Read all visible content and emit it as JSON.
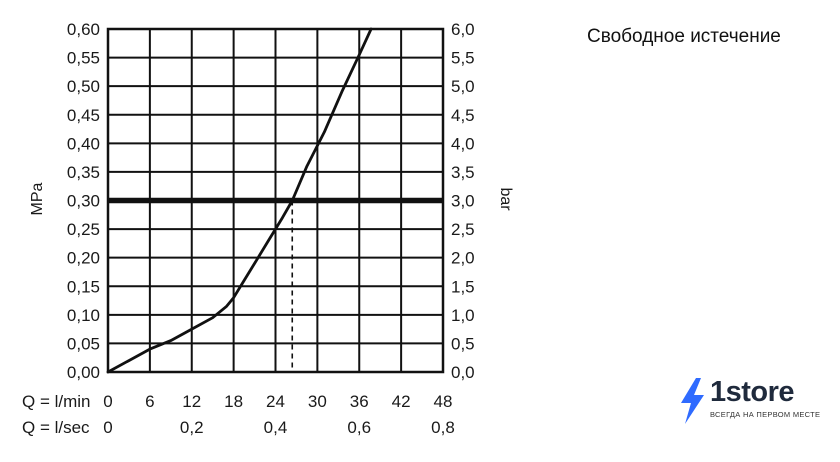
{
  "heading": "Свободное истечение",
  "brand": {
    "name": "1store",
    "tagline": "ВСЕГДА НА ПЕРВОМ МЕСТЕ",
    "accent_color": "#2f6bff"
  },
  "chart_data": {
    "type": "line",
    "ylabel_left": "MPa",
    "ylabel_right": "bar",
    "left_ticks": [
      "0,00",
      "0,05",
      "0,10",
      "0,15",
      "0,20",
      "0,25",
      "0,30",
      "0,35",
      "0,40",
      "0,45",
      "0,50",
      "0,55",
      "0,60"
    ],
    "right_ticks": [
      "0,0",
      "0,5",
      "1,0",
      "1,5",
      "2,0",
      "2,5",
      "3,0",
      "3,5",
      "4,0",
      "4,5",
      "5,0",
      "5,5",
      "6,0"
    ],
    "ylim": [
      0,
      0.6
    ],
    "xlim": [
      0,
      48
    ],
    "x_rows": [
      {
        "label": "Q = l/min",
        "ticks": [
          {
            "v": 0,
            "t": "0"
          },
          {
            "v": 6,
            "t": "6"
          },
          {
            "v": 12,
            "t": "12"
          },
          {
            "v": 18,
            "t": "18"
          },
          {
            "v": 24,
            "t": "24"
          },
          {
            "v": 30,
            "t": "30"
          },
          {
            "v": 36,
            "t": "36"
          },
          {
            "v": 42,
            "t": "42"
          },
          {
            "v": 48,
            "t": "48"
          }
        ]
      },
      {
        "label": "Q = l/sec",
        "ticks": [
          {
            "v": 0,
            "t": "0"
          },
          {
            "v": 12,
            "t": "0,2"
          },
          {
            "v": 24,
            "t": "0,4"
          },
          {
            "v": 36,
            "t": "0,6"
          },
          {
            "v": 48,
            "t": "0,8"
          }
        ]
      }
    ],
    "series": [
      {
        "x": [
          0,
          3,
          6,
          9,
          12,
          15,
          17,
          18,
          19.5,
          21,
          23,
          25,
          26.4,
          28.5,
          31,
          33.5,
          36,
          37.7
        ],
        "y": [
          0,
          0.02,
          0.04,
          0.055,
          0.075,
          0.095,
          0.115,
          0.13,
          0.16,
          0.19,
          0.23,
          0.27,
          0.3,
          0.36,
          0.42,
          0.49,
          0.555,
          0.6
        ]
      }
    ],
    "reference_line": {
      "y": 0.3
    },
    "marker": {
      "x": 26.4,
      "y": 0.3
    },
    "grid": true,
    "line_color": "#111111"
  }
}
